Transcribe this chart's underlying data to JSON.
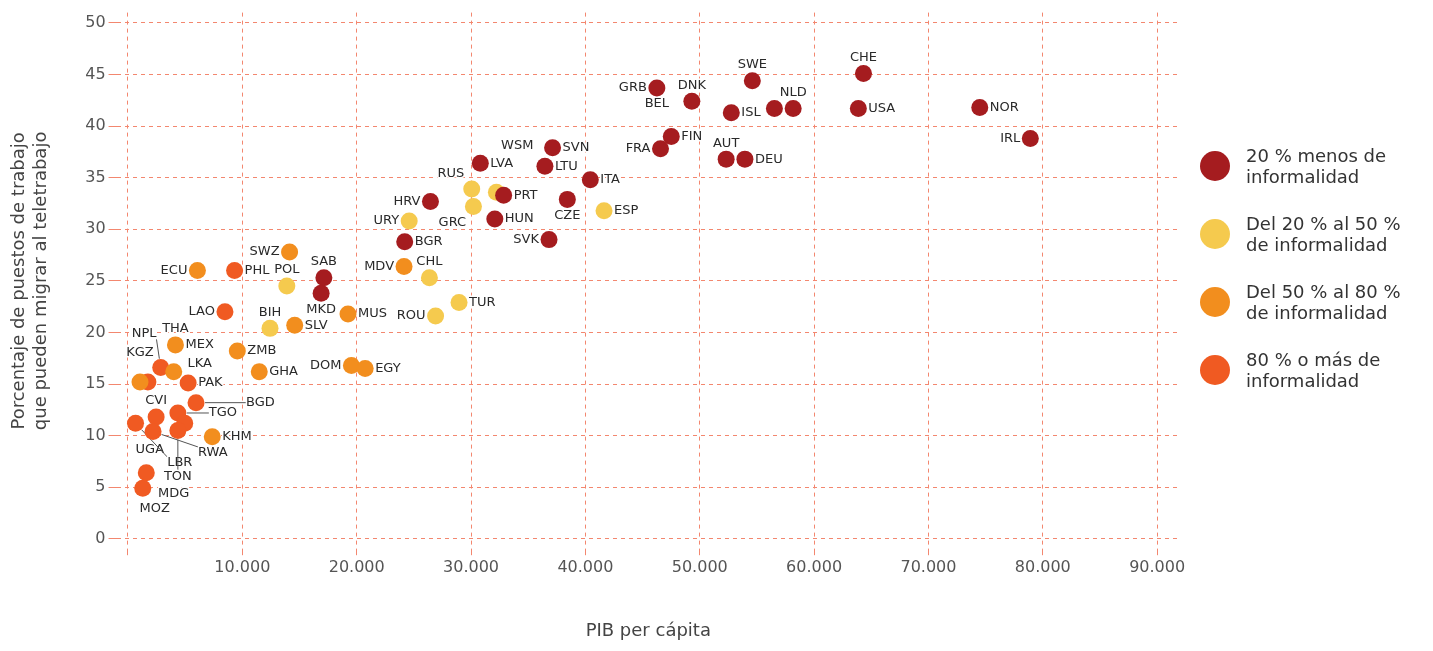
{
  "chart_data": {
    "type": "scatter",
    "xlabel": "PIB per cápita",
    "ylabel": "Porcentaje de puestos de trabajo que pueden migrar al teletrabajo",
    "xlim": [
      -1000,
      92000
    ],
    "ylim": [
      -1,
      51
    ],
    "xticks": [
      {
        "value": 0,
        "label": null
      },
      {
        "value": 10000,
        "label": "10.000"
      },
      {
        "value": 20000,
        "label": "20.000"
      },
      {
        "value": 30000,
        "label": "30.000"
      },
      {
        "value": 40000,
        "label": "40.000"
      },
      {
        "value": 50000,
        "label": "50.000"
      },
      {
        "value": 60000,
        "label": "60.000"
      },
      {
        "value": 70000,
        "label": "70.000"
      },
      {
        "value": 80000,
        "label": "80.000"
      },
      {
        "value": 90000,
        "label": "90.000"
      }
    ],
    "yticks": [
      0,
      5,
      10,
      15,
      20,
      25,
      30,
      35,
      40,
      45,
      50
    ],
    "grid": true,
    "legend": "right",
    "marker": "circle",
    "series": [
      {
        "name": "20 % menos de informalidad",
        "color": "#a51c1f",
        "x": [
          46250,
          49310,
          52760,
          54600,
          56530,
          58170,
          63870,
          64320,
          74490,
          78910,
          47510,
          46570,
          52310,
          53950,
          37130,
          30810,
          36460,
          40430,
          32850,
          38420,
          26450,
          32080,
          36820,
          24200,
          17130,
          16890
        ],
        "values": [
          43.7,
          42.4,
          41.3,
          44.4,
          41.7,
          41.7,
          41.7,
          45.1,
          41.8,
          38.8,
          39.0,
          37.8,
          36.8,
          36.8,
          37.9,
          36.4,
          36.1,
          34.8,
          33.3,
          32.9,
          32.7,
          31.0,
          29.0,
          28.8,
          25.3,
          23.8
        ]
      },
      {
        "name": "Del 20 % al 50 % de informalidad",
        "color": "#f5ca4e",
        "x": [
          30060,
          32220,
          30210,
          41630,
          24590,
          26360,
          13890,
          28950,
          26900,
          12420
        ],
        "values": [
          33.9,
          33.6,
          32.2,
          31.8,
          30.8,
          25.3,
          24.5,
          22.9,
          21.6,
          20.4
        ]
      },
      {
        "name": "Del 50 % al 80 % de informalidad",
        "color": "#f28e1e",
        "x": [
          24140,
          14130,
          19240,
          14580,
          19540,
          20740,
          11480,
          6070,
          4150,
          9560,
          4000,
          1050,
          7370
        ],
        "values": [
          26.4,
          27.8,
          21.8,
          20.7,
          16.8,
          16.5,
          16.2,
          26.0,
          18.8,
          18.2,
          16.2,
          15.2,
          9.9
        ]
      },
      {
        "name": "80 % o más de informalidad",
        "color": "#f05a22",
        "x": [
          9320,
          8480,
          2860,
          1740,
          5260,
          5950,
          660,
          2460,
          2190,
          4360,
          4960,
          4360,
          1600,
          1290
        ],
        "values": [
          26.0,
          22.0,
          16.6,
          15.2,
          15.1,
          13.2,
          11.2,
          11.8,
          10.4,
          12.2,
          11.2,
          10.5,
          6.4,
          4.9
        ]
      }
    ],
    "annotations": [
      {
        "text": "GRB",
        "x": 46250,
        "y": 43.7
      },
      {
        "text": "BEL",
        "x": 46250,
        "y": 43.7
      },
      {
        "text": "DNK",
        "x": 49310,
        "y": 42.4
      },
      {
        "text": "ISL",
        "x": 52760,
        "y": 41.3
      },
      {
        "text": "SWE",
        "x": 54600,
        "y": 44.4
      },
      {
        "text": "NLD",
        "x": 58170,
        "y": 41.7
      },
      {
        "text": "USA",
        "x": 63870,
        "y": 41.7
      },
      {
        "text": "CHE",
        "x": 64320,
        "y": 45.1
      },
      {
        "text": "NOR",
        "x": 74490,
        "y": 41.8
      },
      {
        "text": "IRL",
        "x": 78910,
        "y": 38.8
      },
      {
        "text": "FIN",
        "x": 47510,
        "y": 39.0
      },
      {
        "text": "FRA",
        "x": 46570,
        "y": 37.8
      },
      {
        "text": "AUT",
        "x": 52310,
        "y": 36.8
      },
      {
        "text": "DEU",
        "x": 53950,
        "y": 36.8
      },
      {
        "text": "SVN",
        "x": 37130,
        "y": 37.9
      },
      {
        "text": "LVA",
        "x": 30810,
        "y": 36.4
      },
      {
        "text": "WSM",
        "x": 36460,
        "y": 36.1
      },
      {
        "text": "LTU",
        "x": 36460,
        "y": 36.1
      },
      {
        "text": "ITA",
        "x": 40430,
        "y": 34.8
      },
      {
        "text": "RUS",
        "x": 30060,
        "y": 33.9
      },
      {
        "text": "PRT",
        "x": 32850,
        "y": 33.3
      },
      {
        "text": "CZE",
        "x": 38420,
        "y": 32.9
      },
      {
        "text": "HRV",
        "x": 26450,
        "y": 32.7
      },
      {
        "text": "GRC",
        "x": 30210,
        "y": 32.2
      },
      {
        "text": "ESP",
        "x": 41630,
        "y": 31.8
      },
      {
        "text": "URY",
        "x": 24590,
        "y": 30.8
      },
      {
        "text": "HUN",
        "x": 32080,
        "y": 31.0
      },
      {
        "text": "SVK",
        "x": 36820,
        "y": 29.0
      },
      {
        "text": "BGR",
        "x": 24200,
        "y": 28.8
      },
      {
        "text": "MDV",
        "x": 24140,
        "y": 26.4
      },
      {
        "text": "CHL",
        "x": 26360,
        "y": 25.3
      },
      {
        "text": "SWZ",
        "x": 14130,
        "y": 27.8
      },
      {
        "text": "SAB",
        "x": 17130,
        "y": 25.3
      },
      {
        "text": "POL",
        "x": 13890,
        "y": 24.5
      },
      {
        "text": "MKD",
        "x": 16890,
        "y": 23.8
      },
      {
        "text": "TUR",
        "x": 28950,
        "y": 22.9
      },
      {
        "text": "ROU",
        "x": 26900,
        "y": 21.6
      },
      {
        "text": "MUS",
        "x": 19240,
        "y": 21.8
      },
      {
        "text": "SLV",
        "x": 14580,
        "y": 20.7
      },
      {
        "text": "BIH",
        "x": 12420,
        "y": 20.4
      },
      {
        "text": "DOM",
        "x": 19540,
        "y": 16.8
      },
      {
        "text": "EGY",
        "x": 20740,
        "y": 16.5
      },
      {
        "text": "GHA",
        "x": 11480,
        "y": 16.2
      },
      {
        "text": "ECU",
        "x": 6070,
        "y": 26.0
      },
      {
        "text": "PHL",
        "x": 9320,
        "y": 26.0
      },
      {
        "text": "LAO",
        "x": 8480,
        "y": 22.0
      },
      {
        "text": "MEX",
        "x": 4150,
        "y": 18.8
      },
      {
        "text": "THA",
        "x": 4150,
        "y": 18.8
      },
      {
        "text": "ZMB",
        "x": 9560,
        "y": 18.2
      },
      {
        "text": "NPL",
        "x": 2860,
        "y": 16.6
      },
      {
        "text": "LKA",
        "x": 4000,
        "y": 16.2
      },
      {
        "text": "KGZ",
        "x": 1050,
        "y": 15.2
      },
      {
        "text": "PAK",
        "x": 5260,
        "y": 15.1
      },
      {
        "text": "TGO",
        "x": 4360,
        "y": 12.2
      },
      {
        "text": "BGD",
        "x": 5950,
        "y": 13.2
      },
      {
        "text": "UGA",
        "x": 660,
        "y": 11.2
      },
      {
        "text": "LBR",
        "x": 660,
        "y": 11.2
      },
      {
        "text": "CVI",
        "x": 2460,
        "y": 11.8
      },
      {
        "text": "RWA",
        "x": 2190,
        "y": 10.4
      },
      {
        "text": "KHM",
        "x": 7370,
        "y": 9.9
      },
      {
        "text": "TON",
        "x": 4360,
        "y": 10.5
      },
      {
        "text": "MDG",
        "x": 1600,
        "y": 6.4
      },
      {
        "text": "MOZ",
        "x": 1290,
        "y": 4.9
      }
    ]
  }
}
